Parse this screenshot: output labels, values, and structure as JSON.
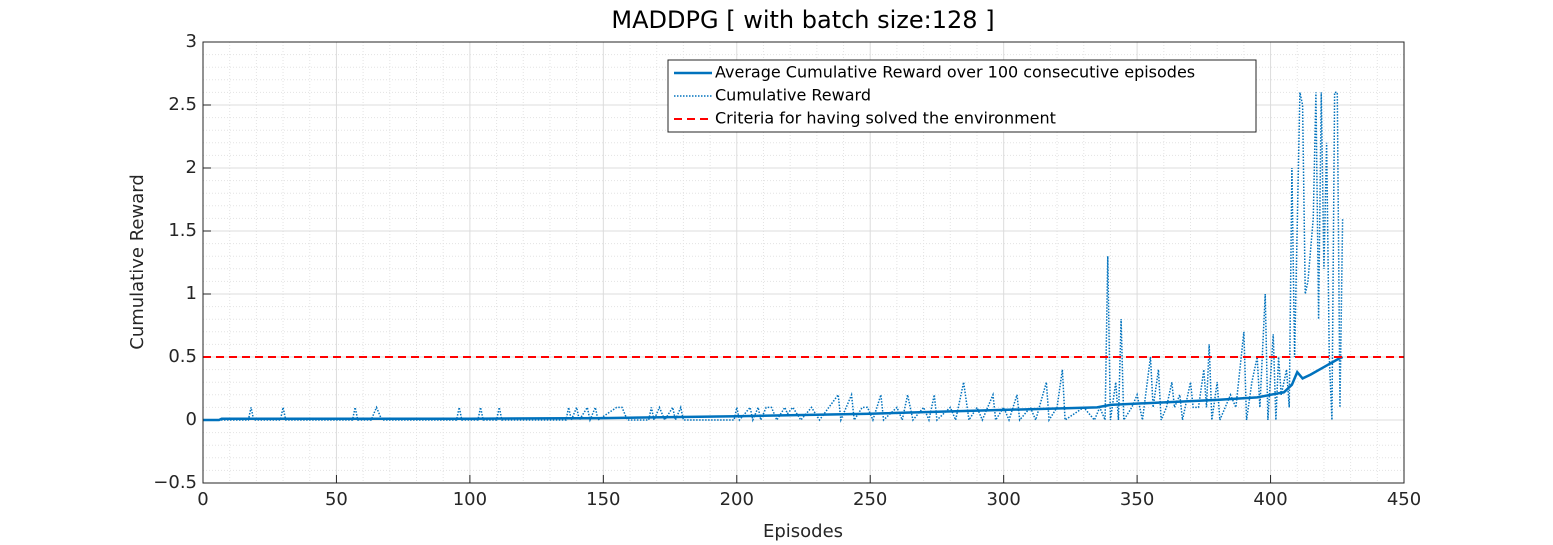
{
  "chart_data": {
    "type": "line",
    "title": "MADDPG [ with batch size:128 ]",
    "xlabel": "Episodes",
    "ylabel": "Cumulative Reward",
    "xlim": [
      0,
      450
    ],
    "xticks": [
      0,
      50,
      100,
      150,
      200,
      250,
      300,
      350,
      400,
      450
    ],
    "ylim": [
      -0.5,
      3
    ],
    "yticks": [
      {
        "value": -0.5,
        "label": "−0.5"
      },
      0,
      0.5,
      1,
      1.5,
      2,
      2.5,
      3
    ],
    "grid": true,
    "minor_grid": true,
    "legend": "upper right",
    "series": [
      {
        "name": "Average Cumulative Reward over 100 consecutive episodes",
        "color": "#0072BD",
        "style": "solid",
        "x": [
          0,
          6,
          7,
          20,
          30,
          100,
          150,
          200,
          250,
          300,
          335,
          340,
          380,
          395,
          405,
          408,
          410,
          412,
          415,
          420,
          425,
          427
        ],
        "values": [
          0,
          0,
          0.01,
          0.01,
          0.01,
          0.01,
          0.015,
          0.03,
          0.05,
          0.08,
          0.1,
          0.12,
          0.16,
          0.18,
          0.22,
          0.28,
          0.38,
          0.33,
          0.36,
          0.42,
          0.48,
          0.5
        ]
      },
      {
        "name": "Cumulative Reward",
        "color": "#0072BD",
        "style": "dotted",
        "x": [
          0,
          17,
          18,
          19,
          29,
          30,
          31,
          56,
          57,
          58,
          63,
          65,
          67,
          95,
          96,
          97,
          103,
          104,
          105,
          110,
          111,
          112,
          136,
          137,
          138,
          140,
          141,
          144,
          145,
          147,
          148,
          155,
          157,
          159,
          167,
          168,
          169,
          171,
          173,
          176,
          177,
          179,
          180,
          199,
          200,
          201,
          205,
          206,
          208,
          209,
          211,
          213,
          215,
          218,
          219,
          221,
          224,
          228,
          231,
          238,
          239,
          241,
          243,
          244,
          247,
          249,
          251,
          254,
          255,
          260,
          262,
          264,
          266,
          270,
          272,
          274,
          275,
          280,
          282,
          285,
          287,
          290,
          292,
          296,
          297,
          300,
          302,
          305,
          306,
          310,
          312,
          316,
          317,
          320,
          322,
          323,
          330,
          334,
          336,
          338,
          339,
          340,
          342,
          343,
          344,
          345,
          348,
          350,
          352,
          355,
          356,
          358,
          359,
          361,
          363,
          364,
          366,
          367,
          370,
          371,
          373,
          375,
          376,
          377,
          378,
          380,
          381,
          383,
          385,
          387,
          390,
          391,
          393,
          395,
          396,
          398,
          399,
          401,
          402,
          403,
          404,
          406,
          407,
          408,
          409,
          411,
          412,
          413,
          414,
          416,
          417,
          418,
          419,
          420,
          421,
          422,
          423,
          424,
          425,
          426,
          427
        ],
        "values": [
          0,
          0,
          0.1,
          0,
          0,
          0.1,
          0,
          0,
          0.1,
          0,
          0,
          0.1,
          0,
          0,
          0.1,
          0,
          0,
          0.1,
          0,
          0,
          0.1,
          0,
          0,
          0.1,
          0,
          0.1,
          0,
          0.1,
          0,
          0.1,
          0,
          0.1,
          0.1,
          0,
          0,
          0.1,
          0,
          0.1,
          0,
          0.1,
          0,
          0.1,
          0,
          0,
          0.1,
          0,
          0.1,
          0,
          0.1,
          0,
          0.1,
          0.1,
          0,
          0.1,
          0.05,
          0.1,
          0,
          0.1,
          0,
          0.2,
          0,
          0.1,
          0.2,
          0,
          0.1,
          0.1,
          0,
          0.2,
          0,
          0.1,
          0,
          0.2,
          0,
          0.1,
          0,
          0.2,
          0,
          0.1,
          0,
          0.3,
          0,
          0.1,
          0,
          0.2,
          0,
          0.1,
          0,
          0.2,
          0,
          0.1,
          0,
          0.3,
          0,
          0.1,
          0.4,
          0,
          0.1,
          0,
          0.1,
          0,
          1.3,
          0,
          0.3,
          0,
          0.8,
          0,
          0.1,
          0.2,
          0,
          0.5,
          0.1,
          0.4,
          0,
          0.1,
          0.3,
          0.1,
          0.2,
          0,
          0.3,
          0.1,
          0.1,
          0.4,
          0.1,
          0.6,
          0,
          0.3,
          0,
          0.1,
          0.2,
          0.1,
          0.7,
          0,
          0.3,
          0.5,
          0.1,
          1.0,
          0,
          0.68,
          0,
          0.5,
          0.2,
          0.4,
          0.1,
          2.0,
          0.5,
          2.6,
          2.5,
          1.0,
          1.1,
          1.6,
          2.6,
          0.8,
          2.6,
          1.2,
          2.2,
          0.5,
          0,
          2.6,
          2.6,
          0.1,
          1.6
        ]
      },
      {
        "name": "Criteria for having solved the environment",
        "color": "#FF0000",
        "style": "dashed",
        "x": [
          0,
          450
        ],
        "values": [
          0.5,
          0.5
        ]
      }
    ]
  }
}
